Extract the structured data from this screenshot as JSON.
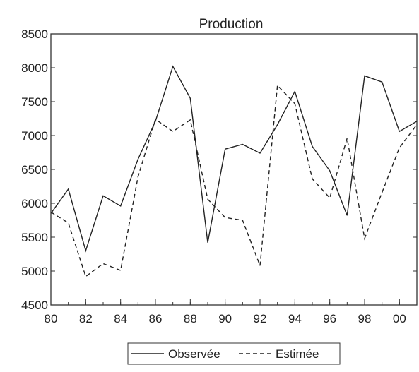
{
  "chart_data": {
    "type": "line",
    "title": "Production",
    "xlabel": "",
    "ylabel": "",
    "x": [
      1980,
      1981,
      1982,
      1983,
      1984,
      1985,
      1986,
      1987,
      1988,
      1989,
      1990,
      1991,
      1992,
      1993,
      1994,
      1995,
      1996,
      1997,
      1998,
      1999,
      2000,
      2001
    ],
    "xticks": [
      1980,
      1982,
      1984,
      1986,
      1988,
      1990,
      1992,
      1994,
      1996,
      1998,
      2000
    ],
    "xtick_labels": [
      "80",
      "82",
      "84",
      "86",
      "88",
      "90",
      "92",
      "94",
      "96",
      "98",
      "00"
    ],
    "xlim": [
      1980,
      2001
    ],
    "ylim": [
      4500,
      8500
    ],
    "yticks": [
      4500,
      5000,
      5500,
      6000,
      6500,
      7000,
      7500,
      8000,
      8500
    ],
    "grid": false,
    "legend_position": "bottom-center",
    "series": [
      {
        "name": "Observée",
        "style": "solid",
        "values": [
          5850,
          6210,
          5300,
          6110,
          5960,
          6650,
          7210,
          8020,
          7550,
          5420,
          6800,
          6870,
          6740,
          7160,
          7650,
          6840,
          6480,
          5820,
          7880,
          7790,
          7060,
          7210
        ]
      },
      {
        "name": "Estimée",
        "style": "dashed",
        "values": [
          5870,
          5710,
          4920,
          5110,
          5010,
          6390,
          7240,
          7060,
          7230,
          6060,
          5790,
          5750,
          5080,
          7740,
          7470,
          6360,
          6080,
          6960,
          5480,
          6160,
          6820,
          7160
        ]
      }
    ]
  }
}
